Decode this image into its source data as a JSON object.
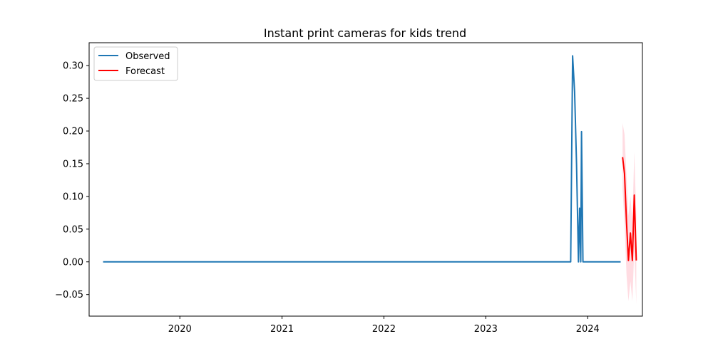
{
  "chart_data": {
    "type": "line",
    "title": "Instant print cameras for kids trend",
    "xlabel": "",
    "ylabel": "",
    "x_axis": "date",
    "xlim": [
      "2019-02-10",
      "2024-07-15"
    ],
    "ylim": [
      -0.083,
      0.335
    ],
    "x_ticks": [
      {
        "date": "2020-01-01",
        "label": "2020"
      },
      {
        "date": "2021-01-01",
        "label": "2021"
      },
      {
        "date": "2022-01-01",
        "label": "2022"
      },
      {
        "date": "2023-01-01",
        "label": "2023"
      },
      {
        "date": "2024-01-01",
        "label": "2024"
      }
    ],
    "y_ticks": [
      {
        "value": 0.3,
        "label": "0.30"
      },
      {
        "value": 0.25,
        "label": "0.25"
      },
      {
        "value": 0.2,
        "label": "0.20"
      },
      {
        "value": 0.15,
        "label": "0.15"
      },
      {
        "value": 0.1,
        "label": "0.10"
      },
      {
        "value": 0.05,
        "label": "0.05"
      },
      {
        "value": 0.0,
        "label": "0.00"
      },
      {
        "value": -0.05,
        "label": "−0.05"
      }
    ],
    "grid": false,
    "legend": {
      "location": "top-left",
      "entries": [
        "Observed",
        "Forecast"
      ]
    },
    "series": [
      {
        "name": "Observed",
        "color": "#1f77b4",
        "points": [
          [
            "2019-04-01",
            0.0
          ],
          [
            "2023-11-01",
            0.0
          ],
          [
            "2023-11-08",
            0.315
          ],
          [
            "2023-11-15",
            0.26
          ],
          [
            "2023-11-22",
            0.15
          ],
          [
            "2023-11-29",
            0.0
          ],
          [
            "2023-12-03",
            0.082
          ],
          [
            "2023-12-07",
            0.0
          ],
          [
            "2023-12-10",
            0.199
          ],
          [
            "2023-12-15",
            0.0
          ],
          [
            "2024-04-28",
            0.0
          ]
        ]
      },
      {
        "name": "Forecast",
        "color": "#ff0000",
        "points": [
          [
            "2024-05-05",
            0.16
          ],
          [
            "2024-05-12",
            0.135
          ],
          [
            "2024-05-19",
            0.06
          ],
          [
            "2024-05-26",
            0.002
          ],
          [
            "2024-06-02",
            0.044
          ],
          [
            "2024-06-09",
            0.002
          ],
          [
            "2024-06-16",
            0.102
          ],
          [
            "2024-06-23",
            0.002
          ]
        ],
        "band_color": "#ffc0cb",
        "band": [
          [
            "2024-05-05",
            0.11,
            0.212
          ],
          [
            "2024-05-12",
            0.06,
            0.195
          ],
          [
            "2024-05-19",
            -0.02,
            0.13
          ],
          [
            "2024-05-26",
            -0.06,
            0.07
          ],
          [
            "2024-06-02",
            -0.03,
            0.1
          ],
          [
            "2024-06-09",
            -0.06,
            0.06
          ],
          [
            "2024-06-16",
            0.02,
            0.168
          ],
          [
            "2024-06-23",
            -0.065,
            0.07
          ]
        ]
      }
    ]
  }
}
